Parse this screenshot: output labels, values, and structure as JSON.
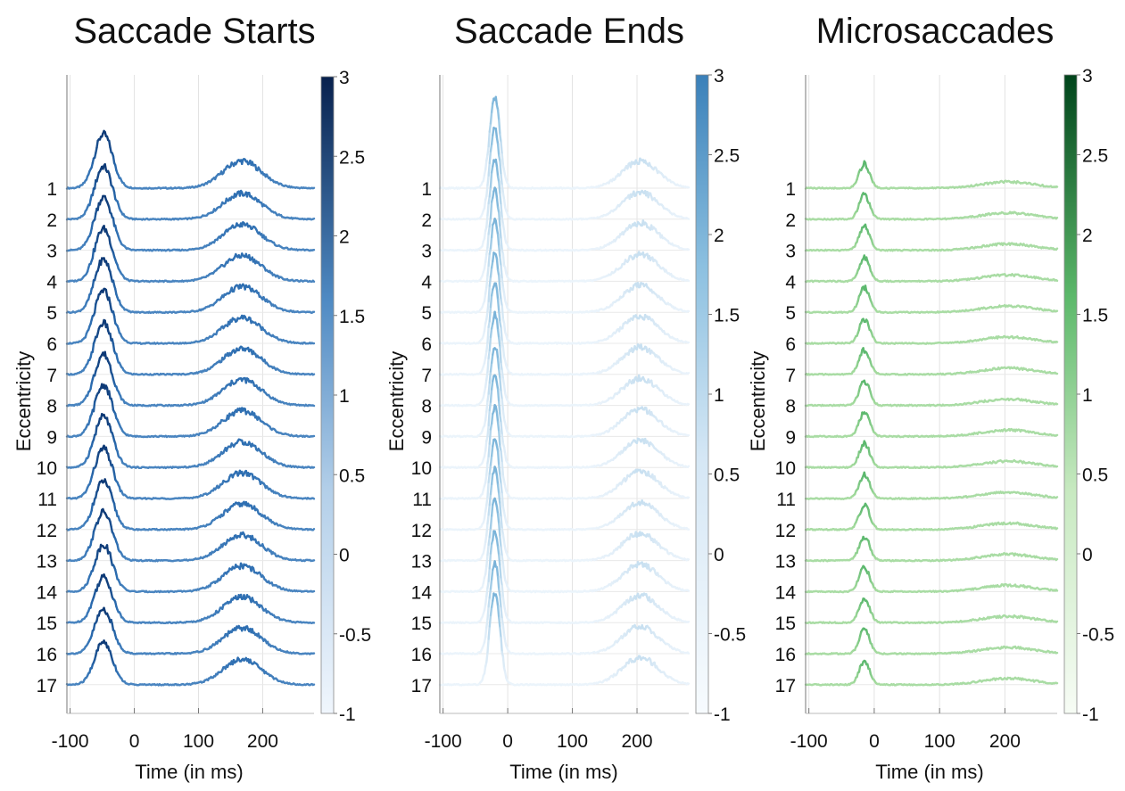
{
  "chart_data": [
    {
      "type": "line",
      "title": "Saccade Starts",
      "xlabel": "Time (in ms)",
      "ylabel": "Eccentricity",
      "xticks": [
        "-100",
        "0",
        "100",
        "200"
      ],
      "xlim": [
        -105,
        280
      ],
      "eccentricity_levels": [
        "1",
        "2",
        "3",
        "4",
        "5",
        "6",
        "7",
        "8",
        "9",
        "10",
        "11",
        "12",
        "13",
        "14",
        "15",
        "16",
        "17"
      ],
      "colorbar": {
        "ticks": [
          "3",
          "2.5",
          "2",
          "1.5",
          "1",
          "0.5",
          "0",
          "-0.5",
          "-1"
        ],
        "range": [
          -1,
          3
        ],
        "colormap": "Blues"
      },
      "peaks": [
        {
          "center": -48,
          "width": 14,
          "height": [
            1.9,
            1.85,
            1.85,
            1.85,
            1.85,
            1.85,
            1.8,
            1.8,
            1.8,
            1.8,
            1.75,
            1.7,
            1.7,
            1.65,
            1.6,
            1.55,
            1.5
          ],
          "color_value": 2.8
        },
        {
          "center": 168,
          "width": 30,
          "height": [
            0.95,
            0.9,
            0.9,
            0.9,
            0.9,
            0.9,
            0.9,
            0.9,
            0.9,
            0.9,
            0.9,
            0.9,
            0.9,
            0.9,
            0.9,
            0.9,
            0.9
          ],
          "color_value": 1.6
        }
      ],
      "baseline_color_value": 1.0,
      "colors": [
        "#08306b",
        "#2b6cb0",
        "#6a9fd0",
        "#f0f6fd"
      ]
    },
    {
      "type": "line",
      "title": "Saccade Ends",
      "xlabel": "Time (in ms)",
      "ylabel": "Eccentricity",
      "xticks": [
        "-100",
        "0",
        "100",
        "200"
      ],
      "xlim": [
        -105,
        280
      ],
      "eccentricity_levels": [
        "1",
        "2",
        "3",
        "4",
        "5",
        "6",
        "7",
        "8",
        "9",
        "10",
        "11",
        "12",
        "13",
        "14",
        "15",
        "16",
        "17"
      ],
      "colorbar": {
        "ticks": [
          "3",
          "2.5",
          "2",
          "1.5",
          "1",
          "0.5",
          "0",
          "-0.5",
          "-1"
        ],
        "range": [
          -1,
          3
        ],
        "colormap": "Blues (light)"
      },
      "peaks": [
        {
          "center": -20,
          "width": 8,
          "height": [
            3.2,
            3.2,
            3.2,
            3.2,
            3.2,
            3.2,
            3.2,
            3.2,
            3.2,
            3.2,
            3.2,
            3.2,
            3.2,
            3.2,
            3.2,
            3.2,
            3.2
          ],
          "color_value": 2.0
        },
        {
          "center": 205,
          "width": 28,
          "height": [
            0.95,
            0.95,
            0.95,
            0.95,
            0.95,
            0.95,
            0.95,
            0.95,
            0.95,
            0.95,
            0.95,
            0.95,
            0.95,
            0.95,
            0.95,
            0.95,
            0.95
          ],
          "color_value": 0.6
        }
      ],
      "baseline_color_value": -0.6,
      "colors": [
        "#3f86bf",
        "#8cc0e0",
        "#d7e8f5",
        "#f4f9fe"
      ]
    },
    {
      "type": "line",
      "title": "Microsaccades",
      "xlabel": "Time (in ms)",
      "ylabel": "Eccentricity",
      "xticks": [
        "-100",
        "0",
        "100",
        "200"
      ],
      "xlim": [
        -105,
        280
      ],
      "eccentricity_levels": [
        "1",
        "2",
        "3",
        "4",
        "5",
        "6",
        "7",
        "8",
        "9",
        "10",
        "11",
        "12",
        "13",
        "14",
        "15",
        "16",
        "17"
      ],
      "colorbar": {
        "ticks": [
          "3",
          "2.5",
          "2",
          "1.5",
          "1",
          "0.5",
          "0",
          "-0.5",
          "-1"
        ],
        "range": [
          -1,
          3
        ],
        "colormap": "Greens"
      },
      "peaks": [
        {
          "center": -15,
          "width": 8,
          "height": [
            0.85,
            0.85,
            0.85,
            0.85,
            0.85,
            0.85,
            0.85,
            0.85,
            0.85,
            0.85,
            0.85,
            0.85,
            0.85,
            0.85,
            0.85,
            0.85,
            0.85
          ],
          "color_value": 1.3
        },
        {
          "center": 205,
          "width": 40,
          "height": [
            0.22,
            0.22,
            0.22,
            0.22,
            0.22,
            0.22,
            0.22,
            0.22,
            0.22,
            0.22,
            0.22,
            0.22,
            0.22,
            0.22,
            0.22,
            0.22,
            0.22
          ],
          "color_value": 0.1
        }
      ],
      "baseline_color_value": 0.2,
      "colors": [
        "#005a24",
        "#41ab5d",
        "#a1d99b",
        "#f4fbf2"
      ]
    }
  ]
}
